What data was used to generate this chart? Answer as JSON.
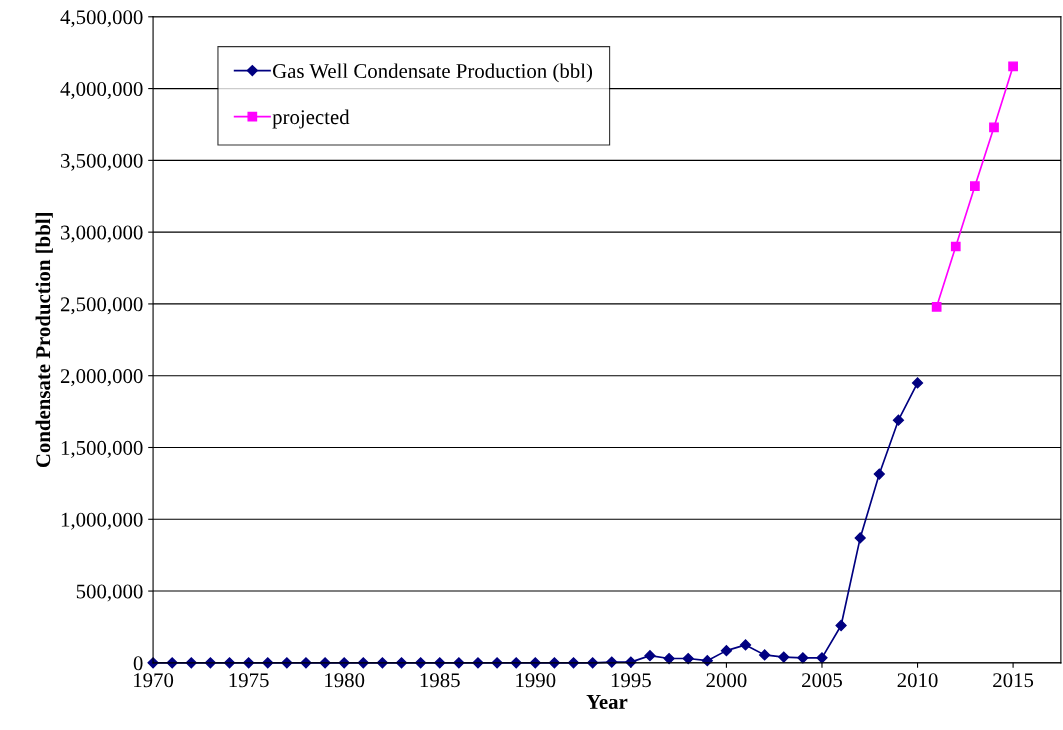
{
  "chart_data": {
    "type": "line",
    "xlabel": "Year",
    "ylabel": "Condensate Production [bbl]",
    "series": [
      {
        "name": "Gas Well Condensate Production (bbl)",
        "color": "#000080",
        "marker": "diamond",
        "x": [
          1970,
          1971,
          1972,
          1973,
          1974,
          1975,
          1976,
          1977,
          1978,
          1979,
          1980,
          1981,
          1982,
          1983,
          1984,
          1985,
          1986,
          1987,
          1988,
          1989,
          1990,
          1991,
          1992,
          1993,
          1994,
          1995,
          1996,
          1997,
          1998,
          1999,
          2000,
          2001,
          2002,
          2003,
          2004,
          2005,
          2006,
          2007,
          2008,
          2009,
          2010
        ],
        "values": [
          0,
          0,
          0,
          0,
          0,
          0,
          0,
          0,
          0,
          0,
          0,
          0,
          0,
          0,
          0,
          0,
          0,
          0,
          0,
          0,
          0,
          0,
          0,
          0,
          5000,
          5000,
          50000,
          30000,
          30000,
          15000,
          85000,
          125000,
          55000,
          40000,
          35000,
          35000,
          260000,
          870000,
          1315000,
          1690000,
          1950000
        ]
      },
      {
        "name": "projected",
        "color": "#ff00ff",
        "marker": "square",
        "x": [
          2011,
          2012,
          2013,
          2014,
          2015
        ],
        "values": [
          2480000,
          2900000,
          3320000,
          3730000,
          4155000
        ]
      }
    ],
    "xlim": [
      1970,
      2017.5
    ],
    "xticks": [
      1970,
      1975,
      1980,
      1985,
      1990,
      1995,
      2000,
      2005,
      2010,
      2015
    ],
    "ylim": [
      0,
      4500000
    ],
    "yticks": [
      {
        "value": 0,
        "label": "0"
      },
      {
        "value": 500000,
        "label": "500,000"
      },
      {
        "value": 1000000,
        "label": "1,000,000"
      },
      {
        "value": 1500000,
        "label": "1,500,000"
      },
      {
        "value": 2000000,
        "label": "2,000,000"
      },
      {
        "value": 2500000,
        "label": "2,500,000"
      },
      {
        "value": 3000000,
        "label": "3,000,000"
      },
      {
        "value": 3500000,
        "label": "3,500,000"
      },
      {
        "value": 4000000,
        "label": "4,000,000"
      },
      {
        "value": 4500000,
        "label": "4,500,000"
      }
    ],
    "grid": "y",
    "legend": "top left",
    "line_style": "solid"
  }
}
